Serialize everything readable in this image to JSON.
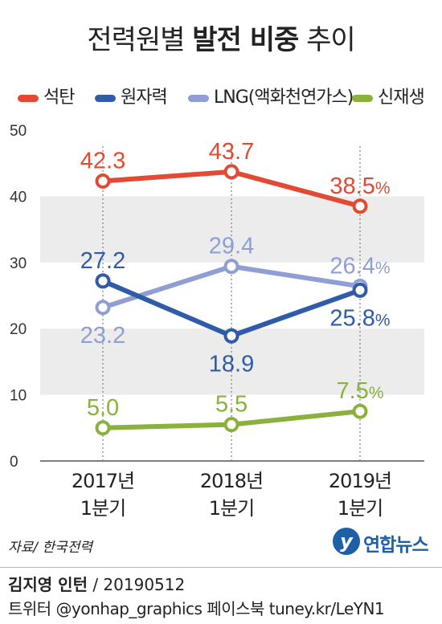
{
  "title": {
    "regular_1": "전력원별",
    "bold": "발전 비중",
    "regular_2": "추이"
  },
  "chart_data": {
    "type": "line",
    "categories": [
      "2017년 1분기",
      "2018년 1분기",
      "2019년 1분기"
    ],
    "category_lines": [
      [
        "2017년",
        "1분기"
      ],
      [
        "2018년",
        "1분기"
      ],
      [
        "2019년",
        "1분기"
      ]
    ],
    "ylim": [
      0,
      50
    ],
    "yticks": [
      0,
      10,
      20,
      30,
      40,
      50
    ],
    "unit_suffix": "%",
    "grid": "alternating bands",
    "legend_position": "top",
    "series": [
      {
        "name": "석탄",
        "color": "#e24a34",
        "values": [
          42.3,
          43.7,
          38.5
        ],
        "labels": [
          "42.3",
          "43.7",
          "38.5"
        ],
        "label_side": [
          "above",
          "above",
          "above"
        ]
      },
      {
        "name": "원자력",
        "color": "#2f5ba8",
        "values": [
          27.2,
          18.9,
          25.8
        ],
        "labels": [
          "27.2",
          "18.9",
          "25.8"
        ],
        "label_side": [
          "above",
          "below",
          "below"
        ]
      },
      {
        "name": "LNG(액화천연가스)",
        "color": "#8f9fd3",
        "values": [
          23.2,
          29.4,
          26.4
        ],
        "labels": [
          "23.2",
          "29.4",
          "26.4"
        ],
        "label_side": [
          "below",
          "above",
          "above"
        ]
      },
      {
        "name": "신재생",
        "color": "#8ab13c",
        "values": [
          5.0,
          5.5,
          7.5
        ],
        "labels": [
          "5.0",
          "5.5",
          "7.5"
        ],
        "label_side": [
          "above",
          "above",
          "above"
        ]
      }
    ]
  },
  "source": "자료/ 한국전력",
  "logo": {
    "mark": "y",
    "text": "연합뉴스"
  },
  "footer": {
    "author": "김지영 인턴",
    "date": " / 20190512",
    "line2": "트위터 @yonhap_graphics  페이스북 tuney.kr/LeYN1"
  }
}
